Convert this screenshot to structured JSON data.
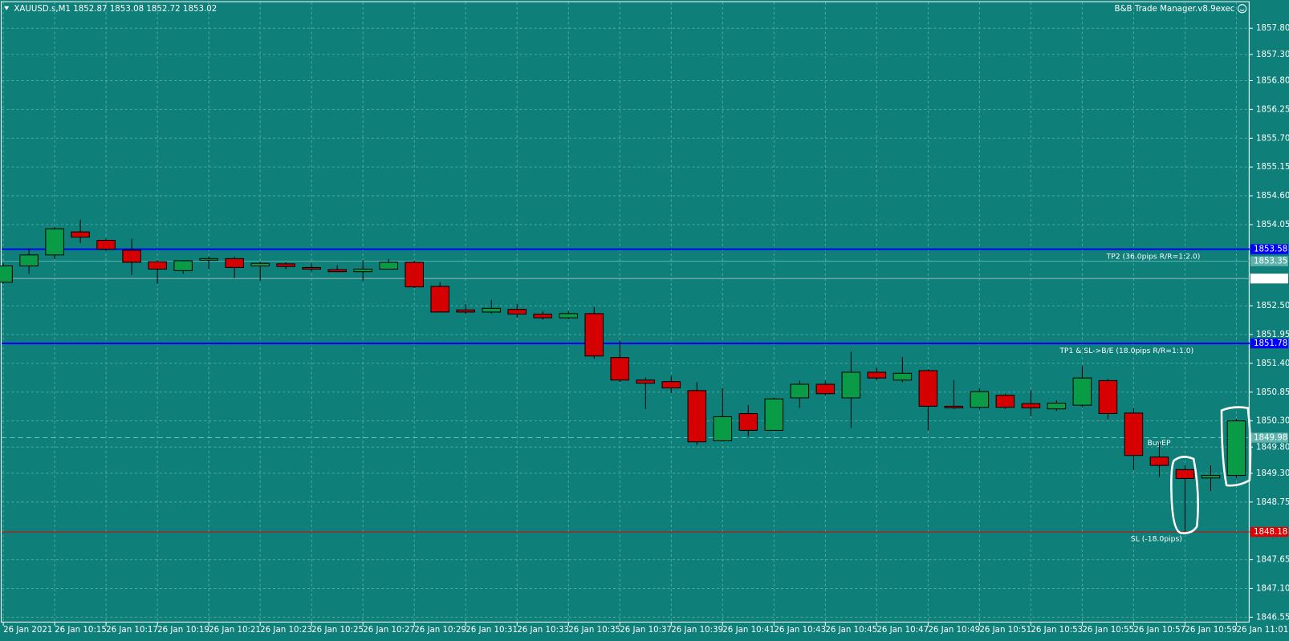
{
  "chart_data": {
    "type": "candlestick",
    "title": "XAUUSD.s,M1  1852.87 1853.08 1852.72 1853.02",
    "indicator": "B&B Trade Manager.v8.9exec",
    "categories": [
      "26 Jan 2021",
      null,
      "26 Jan 10:15",
      null,
      "26 Jan 10:17",
      null,
      "26 Jan 10:19",
      null,
      "26 Jan 10:21",
      null,
      "26 Jan 10:23",
      null,
      "26 Jan 10:25",
      null,
      "26 Jan 10:27",
      null,
      "26 Jan 10:29",
      null,
      "26 Jan 10:31",
      null,
      "26 Jan 10:33",
      null,
      "26 Jan 10:35",
      null,
      "26 Jan 10:37",
      null,
      "26 Jan 10:39",
      null,
      "26 Jan 10:41",
      null,
      "26 Jan 10:43",
      null,
      "26 Jan 10:45",
      null,
      "26 Jan 10:47",
      null,
      "26 Jan 10:49",
      null,
      "26 Jan 10:51",
      null,
      "26 Jan 10:53",
      null,
      "26 Jan 10:55",
      null,
      "26 Jan 10:57",
      null,
      "26 Jan 10:59",
      null,
      "26 Jan 11:01"
    ],
    "open": [
      1852.95,
      1853.26,
      1853.47,
      1853.91,
      1853.75,
      1853.56,
      1853.34,
      1853.17,
      1853.37,
      1853.4,
      1853.26,
      1853.3,
      1853.23,
      1853.19,
      1853.15,
      1853.2,
      1853.33,
      1852.87,
      1852.42,
      1852.38,
      1852.43,
      1852.34,
      1852.27,
      1852.35,
      1851.51,
      1851.08,
      1851.05,
      1850.88,
      1849.92,
      1850.44,
      1850.12,
      1850.74,
      1851.0,
      1850.74,
      1851.23,
      1851.08,
      1851.26,
      1850.58,
      1850.56,
      1850.79,
      1850.63,
      1850.53,
      1850.6,
      1851.07,
      1850.45,
      1849.61,
      1849.37,
      1849.21,
      1849.26
    ],
    "high": [
      1853.31,
      1853.59,
      1854.0,
      1854.14,
      1853.78,
      1853.78,
      1853.37,
      1853.37,
      1853.44,
      1853.44,
      1853.34,
      1853.33,
      1853.31,
      1853.28,
      1853.37,
      1853.39,
      1853.36,
      1852.95,
      1852.53,
      1852.61,
      1852.54,
      1852.4,
      1852.4,
      1852.48,
      1851.83,
      1851.13,
      1851.16,
      1851.04,
      1850.93,
      1850.6,
      1850.75,
      1851.07,
      1851.07,
      1851.62,
      1851.32,
      1851.52,
      1851.29,
      1851.08,
      1850.93,
      1850.82,
      1850.88,
      1850.69,
      1851.35,
      1851.1,
      1850.55,
      1849.89,
      1849.45,
      1849.45,
      1850.34
    ],
    "low": [
      1852.92,
      1853.11,
      1853.39,
      1853.7,
      1853.55,
      1853.09,
      1852.92,
      1853.11,
      1853.2,
      1853.03,
      1852.98,
      1853.2,
      1853.15,
      1853.14,
      1852.97,
      1853.19,
      1852.84,
      1852.37,
      1852.34,
      1852.35,
      1852.27,
      1852.24,
      1852.24,
      1851.49,
      1851.04,
      1850.53,
      1850.83,
      1849.84,
      1849.9,
      1850.01,
      1850.11,
      1850.55,
      1850.79,
      1850.17,
      1851.08,
      1851.04,
      1850.12,
      1850.53,
      1850.52,
      1850.53,
      1850.39,
      1850.49,
      1850.56,
      1850.33,
      1849.36,
      1849.23,
      1848.19,
      1848.96,
      1849.21
    ],
    "close": [
      1853.26,
      1853.47,
      1853.97,
      1853.81,
      1853.58,
      1853.33,
      1853.2,
      1853.36,
      1853.4,
      1853.23,
      1853.31,
      1853.25,
      1853.2,
      1853.15,
      1853.2,
      1853.33,
      1852.86,
      1852.38,
      1852.38,
      1852.45,
      1852.34,
      1852.27,
      1852.35,
      1851.54,
      1851.08,
      1851.02,
      1850.93,
      1849.9,
      1850.38,
      1850.12,
      1850.72,
      1851.0,
      1850.82,
      1851.23,
      1851.12,
      1851.21,
      1850.58,
      1850.55,
      1850.86,
      1850.56,
      1850.55,
      1850.64,
      1851.12,
      1850.44,
      1849.64,
      1849.45,
      1849.2,
      1849.26,
      1850.3
    ],
    "up_color": "#0a9b46",
    "down_color": "#d50000",
    "ylim": [
      1846.45,
      1858.3
    ],
    "yticks": [
      {
        "value": 1857.8,
        "label": "1857.80"
      },
      {
        "value": 1857.3,
        "label": "1857.30"
      },
      {
        "value": 1856.8,
        "label": "1856.80"
      },
      1856.25,
      {
        "value": 1855.7,
        "label": "1855.70"
      },
      1855.15,
      {
        "value": 1854.6,
        "label": "1854.60"
      },
      1854.05,
      {
        "value": 1852.5,
        "label": "1852.50"
      },
      1851.95,
      {
        "value": 1851.4,
        "label": "1851.40"
      },
      1850.85,
      {
        "value": 1850.3,
        "label": "1850.30"
      },
      {
        "value": 1849.8,
        "label": "1849.80"
      },
      {
        "value": 1849.3,
        "label": "1849.30"
      },
      1848.75,
      1847.65,
      {
        "value": 1847.1,
        "label": "1847.10"
      },
      1846.55
    ],
    "grid": true,
    "levels": [
      {
        "value": 1853.58,
        "color": "#0000ff",
        "label_bg": "#0000ff",
        "text": "TP2 (36.0pips R/R=1:2.0)"
      },
      {
        "value": 1853.35,
        "color": "#5fb3ac",
        "label_bg": "#5fb3ac"
      },
      {
        "value": 1853.02,
        "color": "#9ab8b6",
        "label_bg": "#ffffff"
      },
      {
        "value": 1851.78,
        "color": "#0000ff",
        "label_bg": "#0000ff",
        "text": "TP1 & SL->B/E (18.0pips R/R=1:1.0)"
      },
      {
        "value": 1849.98,
        "color": "#5fc4b9",
        "label_bg": "#5fb3ac",
        "text": "BuyEP",
        "dashed": true
      },
      {
        "value": 1848.18,
        "color": "#e00000",
        "label_bg": "#e00000",
        "text": "SL (-18.0pips)"
      }
    ]
  }
}
